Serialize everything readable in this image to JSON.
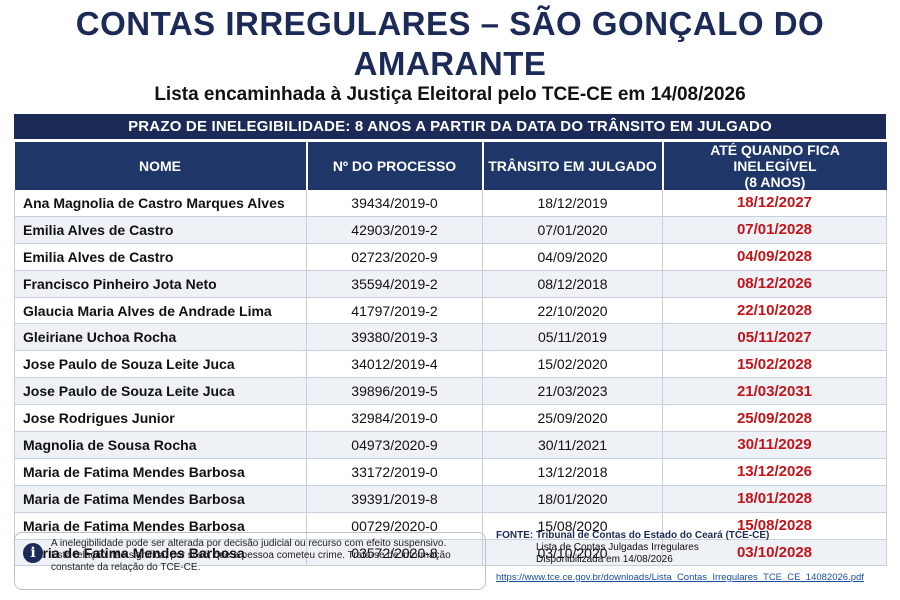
{
  "header": {
    "title": "CONTAS IRREGULARES – SÃO GONÇALO DO AMARANTE",
    "subtitle": "Lista encaminhada à Justiça Eleitoral pelo TCE-CE em 14/08/2026"
  },
  "banner": "PRAZO DE INELEGIBILIDADE: 8 ANOS A PARTIR DA DATA DO TRÂNSITO EM JULGADO",
  "table": {
    "columns": [
      "NOME",
      "Nº DO PROCESSO",
      "TRÂNSITO EM JULGADO",
      "ATÉ QUANDO FICA INELEGÍVEL",
      "(8 ANOS)"
    ],
    "rows": [
      {
        "nome": "Ana Magnolia de Castro Marques Alves",
        "processo": "39434/2019-0",
        "transito": "18/12/2019",
        "ate": "18/12/2027"
      },
      {
        "nome": "Emilia Alves de Castro",
        "processo": "42903/2019-2",
        "transito": "07/01/2020",
        "ate": "07/01/2028"
      },
      {
        "nome": "Emilia Alves de Castro",
        "processo": "02723/2020-9",
        "transito": "04/09/2020",
        "ate": "04/09/2028"
      },
      {
        "nome": "Francisco Pinheiro Jota Neto",
        "processo": "35594/2019-2",
        "transito": "08/12/2018",
        "ate": "08/12/2026"
      },
      {
        "nome": "Glaucia Maria Alves de Andrade Lima",
        "processo": "41797/2019-2",
        "transito": "22/10/2020",
        "ate": "22/10/2028"
      },
      {
        "nome": "Gleiriane Uchoa Rocha",
        "processo": "39380/2019-3",
        "transito": "05/11/2019",
        "ate": "05/11/2027"
      },
      {
        "nome": "Jose Paulo de Souza Leite Juca",
        "processo": "34012/2019-4",
        "transito": "15/02/2020",
        "ate": "15/02/2028"
      },
      {
        "nome": "Jose Paulo de Souza Leite Juca",
        "processo": "39896/2019-5",
        "transito": "21/03/2023",
        "ate": "21/03/2031"
      },
      {
        "nome": "Jose Rodrigues Junior",
        "processo": "32984/2019-0",
        "transito": "25/09/2020",
        "ate": "25/09/2028"
      },
      {
        "nome": "Magnolia de Sousa Rocha",
        "processo": "04973/2020-9",
        "transito": "30/11/2021",
        "ate": "30/11/2029"
      },
      {
        "nome": "Maria de Fatima Mendes Barbosa",
        "processo": "33172/2019-0",
        "transito": "13/12/2018",
        "ate": "13/12/2026"
      },
      {
        "nome": "Maria de Fatima Mendes Barbosa",
        "processo": "39391/2019-8",
        "transito": "18/01/2020",
        "ate": "18/01/2028"
      },
      {
        "nome": "Maria de Fatima Mendes Barbosa",
        "processo": "00729/2020-0",
        "transito": "15/08/2020",
        "ate": "15/08/2028"
      },
      {
        "nome": "Maria de Fatima Mendes Barbosa",
        "processo": "03572/2020-8",
        "transito": "03/10/2020",
        "ate": "03/10/2028"
      }
    ]
  },
  "note": {
    "icon": "info-icon",
    "line1": "A inelegibilidade pode ser alterada por decisão judicial ou recurso com efeito suspensivo.",
    "line2": "Esta relação não significa, por si só, que a pessoa cometeu crime. Trata-se de informação",
    "line3": "constante da relação do TCE-CE."
  },
  "source": {
    "label": "FONTE:",
    "org": "Tribunal de Contas do Estado do Ceará (TCE-CE)",
    "line2": "Lista de Contas Julgadas Irregulares",
    "line3": "Disponibilizada em 14/08/2026",
    "url": "https://www.tce.ce.gov.br/downloads/Lista_Contas_Irregulares_TCE_CE_14082026.pdf"
  },
  "colors": {
    "navy": "#1b2a57",
    "header_blue": "#1f3668",
    "red_date": "#c0141a",
    "row_alt": "#eef1f6"
  }
}
